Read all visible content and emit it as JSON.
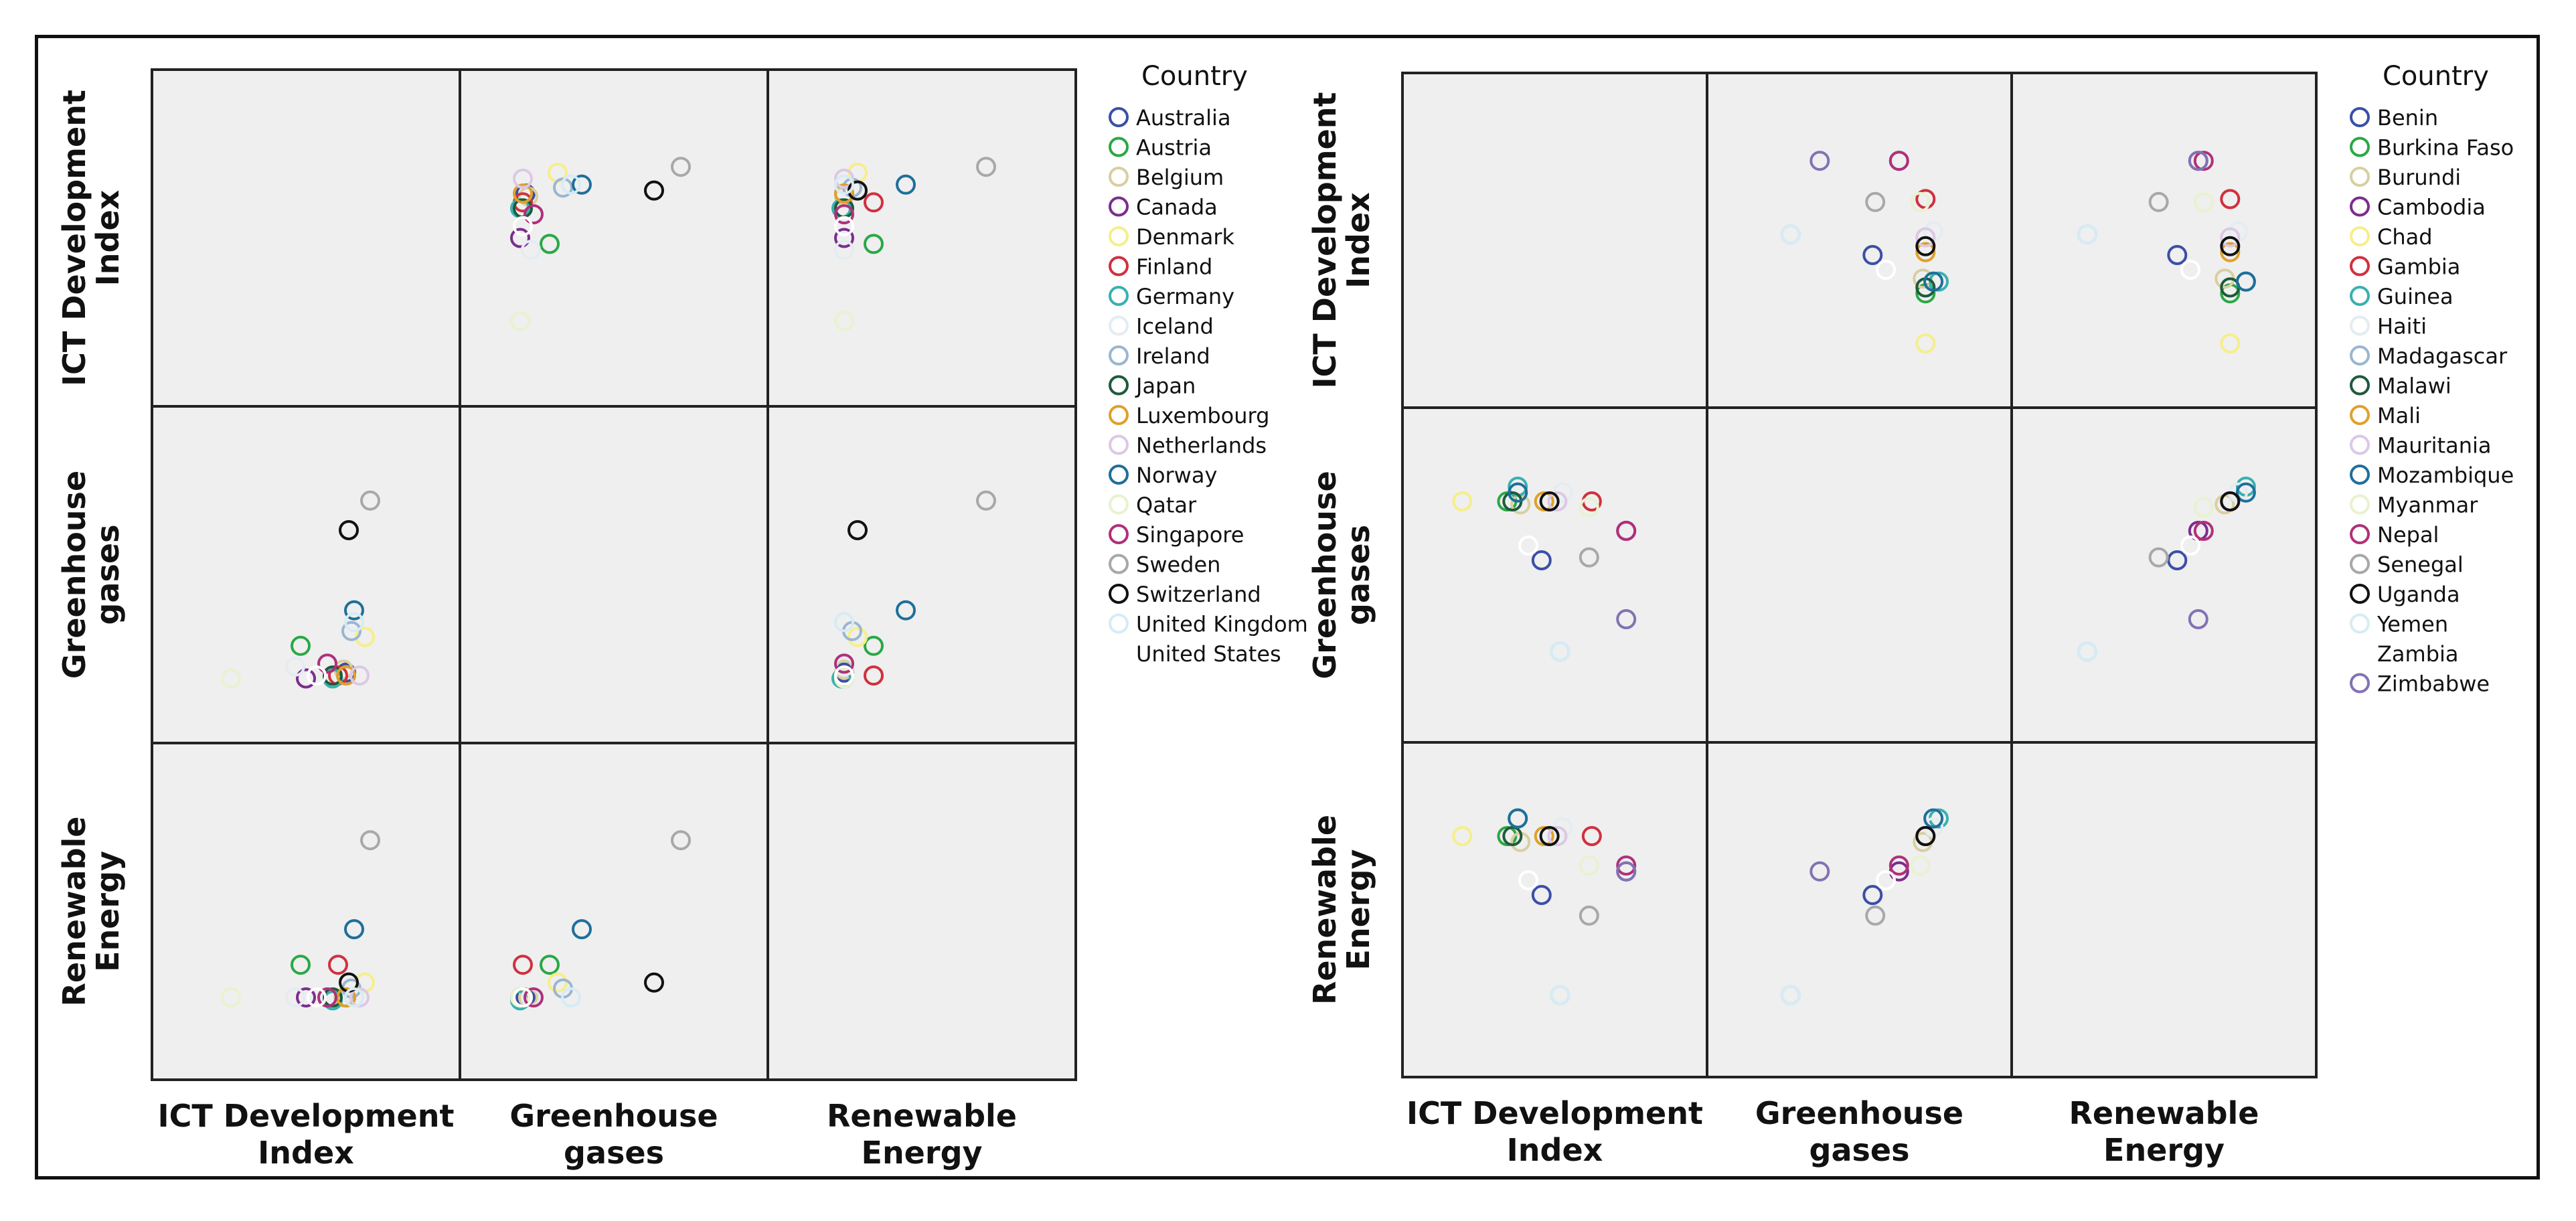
{
  "figure": {
    "legend_title": "Country",
    "variables": [
      "ICT Development Index",
      "Greenhouse gases",
      "Renewable Energy"
    ],
    "row_labels": [
      [
        "ICT Development",
        "Index"
      ],
      [
        "Greenhouse",
        "gases"
      ],
      [
        "Renewable",
        "Energy"
      ]
    ],
    "col_labels": [
      [
        "ICT Development",
        "Index"
      ],
      [
        "Greenhouse",
        "gases"
      ],
      [
        "Renewable",
        "Energy"
      ]
    ],
    "panel_background": "#efefef"
  },
  "chart_data": [
    {
      "type": "scatter",
      "subtype": "scatterplot-matrix",
      "title": "",
      "variables": [
        "ICT Development Index",
        "Greenhouse gases",
        "Renewable Energy"
      ],
      "group_label": "Country",
      "scales": {
        "ICT": [
          0,
          100
        ],
        "GHG": [
          0,
          100
        ],
        "RE": [
          0,
          100
        ]
      },
      "legend": [
        {
          "country": "Australia",
          "color": "#3a4fa8"
        },
        {
          "country": "Austria",
          "color": "#2aa845"
        },
        {
          "country": "Belgium",
          "color": "#d8cfa0"
        },
        {
          "country": "Canada",
          "color": "#7b2d8e"
        },
        {
          "country": "Denmark",
          "color": "#f6ee8a"
        },
        {
          "country": "Finland",
          "color": "#d0303f"
        },
        {
          "country": "Germany",
          "color": "#3ab0b0"
        },
        {
          "country": "Iceland",
          "color": "#e4ecf2"
        },
        {
          "country": "Ireland",
          "color": "#9ab6d0"
        },
        {
          "country": "Japan",
          "color": "#1f5a3a"
        },
        {
          "country": "Luxembourg",
          "color": "#e0a02a"
        },
        {
          "country": "Netherlands",
          "color": "#dcc8e6"
        },
        {
          "country": "Norway",
          "color": "#1f6f9a"
        },
        {
          "country": "Qatar",
          "color": "#e8f2cf"
        },
        {
          "country": "Singapore",
          "color": "#b0307a"
        },
        {
          "country": "Sweden",
          "color": "#a8a8a8"
        },
        {
          "country": "Switzerland",
          "color": "#111111"
        },
        {
          "country": "United Kingdom",
          "color": "#d6ecf4"
        },
        {
          "country": "United States",
          "color": "#ffffff"
        }
      ],
      "points": [
        {
          "country": "Australia",
          "ICT": 65,
          "GHG": 17,
          "RE": 21
        },
        {
          "country": "Austria",
          "ICT": 48,
          "GHG": 26,
          "RE": 32
        },
        {
          "country": "Belgium",
          "ICT": 64,
          "GHG": 18,
          "RE": 21
        },
        {
          "country": "Canada",
          "ICT": 50,
          "GHG": 15,
          "RE": 21
        },
        {
          "country": "Denmark",
          "ICT": 72,
          "GHG": 29,
          "RE": 26
        },
        {
          "country": "Finland",
          "ICT": 62,
          "GHG": 16,
          "RE": 32
        },
        {
          "country": "Germany",
          "ICT": 60,
          "GHG": 15,
          "RE": 20
        },
        {
          "country": "Iceland",
          "ICT": 46,
          "GHG": 19,
          "RE": 21
        },
        {
          "country": "Ireland",
          "ICT": 67,
          "GHG": 31,
          "RE": 24
        },
        {
          "country": "Japan",
          "ICT": 60,
          "GHG": 16,
          "RE": 21
        },
        {
          "country": "Luxembourg",
          "ICT": 65,
          "GHG": 16,
          "RE": 21
        },
        {
          "country": "Netherlands",
          "ICT": 70,
          "GHG": 16,
          "RE": 21
        },
        {
          "country": "Norway",
          "ICT": 68,
          "GHG": 38,
          "RE": 44
        },
        {
          "country": "Qatar",
          "ICT": 22,
          "GHG": 15,
          "RE": 21
        },
        {
          "country": "Singapore",
          "ICT": 58,
          "GHG": 20,
          "RE": 21
        },
        {
          "country": "Sweden",
          "ICT": 74,
          "GHG": 75,
          "RE": 74
        },
        {
          "country": "Switzerland",
          "ICT": 66,
          "GHG": 65,
          "RE": 26
        },
        {
          "country": "United Kingdom",
          "ICT": 68,
          "GHG": 34,
          "RE": 21
        },
        {
          "country": "United States",
          "ICT": 54,
          "GHG": 16,
          "RE": 21
        }
      ]
    },
    {
      "type": "scatter",
      "subtype": "scatterplot-matrix",
      "title": "",
      "variables": [
        "ICT Development Index",
        "Greenhouse gases",
        "Renewable Energy"
      ],
      "group_label": "Country",
      "scales": {
        "ICT": [
          0,
          100
        ],
        "GHG": [
          0,
          100
        ],
        "RE": [
          0,
          100
        ]
      },
      "legend": [
        {
          "country": "Benin",
          "color": "#3a4fa8"
        },
        {
          "country": "Burkina Faso",
          "color": "#2aa845"
        },
        {
          "country": "Burundi",
          "color": "#d8cfa0"
        },
        {
          "country": "Cambodia",
          "color": "#7b2d8e"
        },
        {
          "country": "Chad",
          "color": "#f6ee8a"
        },
        {
          "country": "Gambia",
          "color": "#d0303f"
        },
        {
          "country": "Guinea",
          "color": "#3ab0b0"
        },
        {
          "country": "Haiti",
          "color": "#e4ecf2"
        },
        {
          "country": "Madagascar",
          "color": "#9ab6d0"
        },
        {
          "country": "Malawi",
          "color": "#1f5a3a"
        },
        {
          "country": "Mali",
          "color": "#e0a02a"
        },
        {
          "country": "Mauritania",
          "color": "#dcc8e6"
        },
        {
          "country": "Mozambique",
          "color": "#1f6f9a"
        },
        {
          "country": "Myanmar",
          "color": "#e8f2cf"
        },
        {
          "country": "Nepal",
          "color": "#b0307a"
        },
        {
          "country": "Senegal",
          "color": "#a8a8a8"
        },
        {
          "country": "Uganda",
          "color": "#111111"
        },
        {
          "country": "Yemen",
          "color": "#d6ecf4"
        },
        {
          "country": "Zambia",
          "color": "#ffffff"
        },
        {
          "country": "Zimbabwe",
          "color": "#8272b4"
        }
      ],
      "points": [
        {
          "country": "Benin",
          "ICT": 45,
          "GHG": 55,
          "RE": 55
        },
        {
          "country": "Burkina Faso",
          "ICT": 32,
          "GHG": 75,
          "RE": 75
        },
        {
          "country": "Burundi",
          "ICT": 37,
          "GHG": 74,
          "RE": 73
        },
        {
          "country": "Cambodia",
          "ICT": 77,
          "GHG": 65,
          "RE": 63
        },
        {
          "country": "Chad",
          "ICT": 15,
          "GHG": 75,
          "RE": 75
        },
        {
          "country": "Gambia",
          "ICT": 64,
          "GHG": 75,
          "RE": 75
        },
        {
          "country": "Guinea",
          "ICT": 36,
          "GHG": 80,
          "RE": 81
        },
        {
          "country": "Haiti",
          "ICT": 53,
          "GHG": 78,
          "RE": 78
        },
        {
          "country": "Madagascar",
          "ICT": 52,
          "GHG": 24,
          "RE": 21
        },
        {
          "country": "Malawi",
          "ICT": 34,
          "GHG": 75,
          "RE": 75
        },
        {
          "country": "Mali",
          "ICT": 46,
          "GHG": 75,
          "RE": 75
        },
        {
          "country": "Mauritania",
          "ICT": 51,
          "GHG": 75,
          "RE": 75
        },
        {
          "country": "Mozambique",
          "ICT": 36,
          "GHG": 78,
          "RE": 81
        },
        {
          "country": "Myanmar",
          "ICT": 63,
          "GHG": 73,
          "RE": 65
        },
        {
          "country": "Nepal",
          "ICT": 77,
          "GHG": 65,
          "RE": 65
        },
        {
          "country": "Senegal",
          "ICT": 63,
          "GHG": 56,
          "RE": 48
        },
        {
          "country": "Uganda",
          "ICT": 48,
          "GHG": 75,
          "RE": 75
        },
        {
          "country": "Yemen",
          "ICT": 52,
          "GHG": 24,
          "RE": 21
        },
        {
          "country": "Zambia",
          "ICT": 40,
          "GHG": 60,
          "RE": 60
        },
        {
          "country": "Zimbabwe",
          "ICT": 77,
          "GHG": 35,
          "RE": 63
        }
      ]
    }
  ]
}
